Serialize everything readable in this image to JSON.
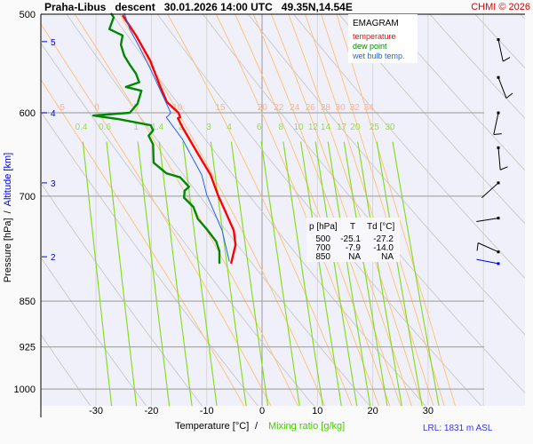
{
  "header": {
    "title": "Praha-Libus   descent   30.01.2026 14:00 UTC   49.35N,14.54E",
    "copyright": "CHMI © 2026"
  },
  "legend": {
    "heading": "EMAGRAM",
    "items": [
      {
        "label": "temperature",
        "color": "#ff0000"
      },
      {
        "label": "dew point",
        "color": "#008800"
      },
      {
        "label": "wet bulb temp.",
        "color": "#2266ee"
      }
    ]
  },
  "table": {
    "headers": [
      "p [hPa]",
      "T",
      "Td [°C]"
    ],
    "rows": [
      [
        "500",
        "-25.1",
        "-27.2"
      ],
      [
        "700",
        "-7.9",
        "-14.0"
      ],
      [
        "850",
        "NA",
        "NA"
      ]
    ]
  },
  "footer": {
    "lrl": "LRL: 1831 m ASL"
  },
  "chart_data": {
    "type": "line",
    "title": "EMAGRAM",
    "xlabel": "Temperature [°C]",
    "xlabel2": "Mixing ratio [g/kg]",
    "ylabel": "Pressure [hPa]",
    "ylabel2": "Altitude [km]",
    "ylabel_sep": "/",
    "xlabel_sep": "/",
    "xlim": [
      -40,
      47
    ],
    "ylim": [
      500,
      1035
    ],
    "y_scale": "log",
    "x_ticks": [
      "-30",
      "-20",
      "-10",
      "0",
      "10",
      "20",
      "30"
    ],
    "x_tick_values": [
      -30,
      -20,
      -10,
      0,
      10,
      20,
      30
    ],
    "y_ticks": [
      "500",
      "600",
      "700",
      "850",
      "925",
      "1000"
    ],
    "y_tick_values": [
      500,
      600,
      700,
      850,
      925,
      1000
    ],
    "altitude_ticks": [
      {
        "label": "5",
        "p": 526
      },
      {
        "label": "4",
        "p": 600
      },
      {
        "label": "3",
        "p": 683
      },
      {
        "label": "2",
        "p": 783
      }
    ],
    "moist_adiabat_labels": [
      "-5",
      "0",
      "5",
      "10",
      "15",
      "20",
      "22",
      "24",
      "26",
      "28",
      "30",
      "32",
      "34"
    ],
    "moist_adiabat_values": [
      -5,
      0,
      5,
      10,
      15,
      20,
      22,
      24,
      26,
      28,
      30,
      32,
      34
    ],
    "mixing_ratio_labels": [
      "0.4",
      "0.6",
      "1",
      "1.4",
      "2",
      "3",
      "4",
      "6",
      "8",
      "10",
      "12",
      "14",
      "17",
      "20",
      "25",
      "30"
    ],
    "mixing_ratio_values": [
      0.4,
      0.6,
      1,
      1.4,
      2,
      3,
      4,
      6,
      8,
      10,
      12,
      14,
      17,
      20,
      25,
      30
    ],
    "series": [
      {
        "name": "temperature",
        "color": "#ff0000",
        "points": [
          [
            501,
            -25.2
          ],
          [
            520,
            -22.8
          ],
          [
            545,
            -20.2
          ],
          [
            570,
            -18.5
          ],
          [
            588,
            -17.2
          ],
          [
            600,
            -15.1
          ],
          [
            605,
            -14.8
          ],
          [
            606,
            -15.2
          ],
          [
            616,
            -14.4
          ],
          [
            647,
            -11.6
          ],
          [
            673,
            -9.3
          ],
          [
            698,
            -8.0
          ],
          [
            719,
            -6.7
          ],
          [
            746,
            -5.1
          ],
          [
            766,
            -4.8
          ],
          [
            793,
            -5.6
          ]
        ]
      },
      {
        "name": "dew point",
        "color": "#008800",
        "points": [
          [
            499,
            -27.3
          ],
          [
            503,
            -26.8
          ],
          [
            514,
            -27.6
          ],
          [
            520,
            -25.2
          ],
          [
            529,
            -25.5
          ],
          [
            540,
            -24.9
          ],
          [
            549,
            -23.9
          ],
          [
            558,
            -22.8
          ],
          [
            567,
            -22.2
          ],
          [
            572,
            -24.6
          ],
          [
            576,
            -21.8
          ],
          [
            590,
            -22.5
          ],
          [
            600,
            -23.9
          ],
          [
            603,
            -30.5
          ],
          [
            607,
            -26.0
          ],
          [
            614,
            -20.1
          ],
          [
            620,
            -19.7
          ],
          [
            626,
            -20.5
          ],
          [
            636,
            -19.7
          ],
          [
            658,
            -19.6
          ],
          [
            671,
            -17.3
          ],
          [
            676,
            -14.8
          ],
          [
            688,
            -13.2
          ],
          [
            693,
            -14.0
          ],
          [
            702,
            -14.1
          ],
          [
            714,
            -12.4
          ],
          [
            730,
            -11.6
          ],
          [
            744,
            -10.0
          ],
          [
            761,
            -8.3
          ],
          [
            775,
            -7.7
          ],
          [
            793,
            -7.7
          ]
        ]
      },
      {
        "name": "wet bulb temp.",
        "color": "#2266ee",
        "points": [
          [
            499,
            -24.9
          ],
          [
            514,
            -23.9
          ],
          [
            531,
            -22.2
          ],
          [
            553,
            -20.2
          ],
          [
            574,
            -18.5
          ],
          [
            600,
            -16.5
          ],
          [
            603,
            -16.9
          ],
          [
            605,
            -17.3
          ],
          [
            630,
            -14.4
          ],
          [
            673,
            -10.9
          ],
          [
            698,
            -10.0
          ],
          [
            746,
            -7.2
          ],
          [
            790,
            -5.9
          ]
        ]
      }
    ],
    "wind_barbs": [
      {
        "p": 524,
        "dir": 168,
        "speed": 10
      },
      {
        "p": 562,
        "dir": 159,
        "speed": 10
      },
      {
        "p": 600,
        "dir": 192,
        "speed": 10
      },
      {
        "p": 640,
        "dir": 175,
        "speed": 10
      },
      {
        "p": 683,
        "dir": 228,
        "speed": 0
      },
      {
        "p": 729,
        "dir": 261,
        "speed": 0
      },
      {
        "p": 776,
        "dir": 294,
        "speed": 10
      },
      {
        "p": 793,
        "dir": 281,
        "speed": 0,
        "surface": true
      }
    ]
  }
}
